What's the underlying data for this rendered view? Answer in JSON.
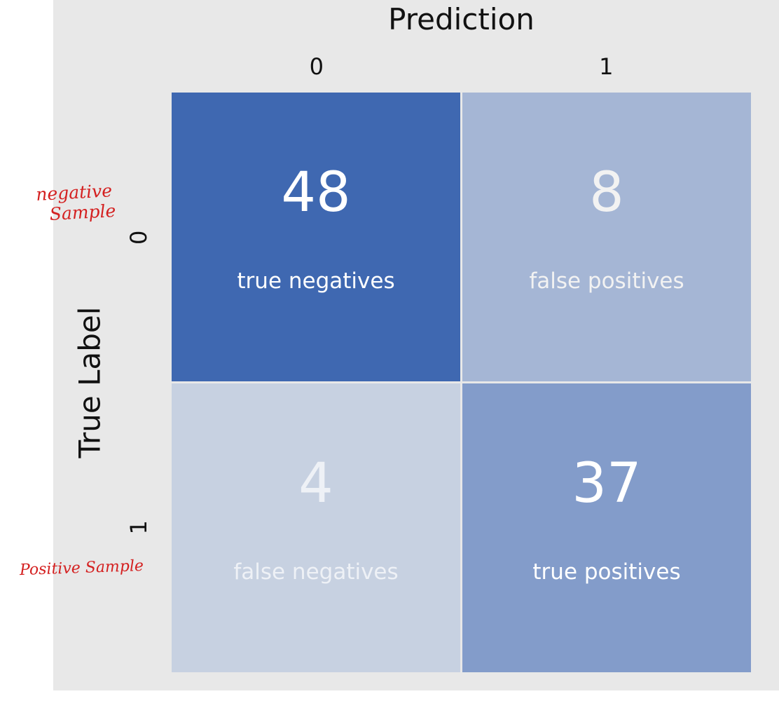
{
  "chart_data": {
    "type": "heatmap",
    "xlabel": "Prediction",
    "ylabel": "True Label",
    "x_categories": [
      "0",
      "1"
    ],
    "y_categories": [
      "0",
      "1"
    ],
    "cells": [
      {
        "row": 0,
        "col": 0,
        "value": 48,
        "label": "true negatives",
        "color": "#3f68b1",
        "text_color": "#ffffff"
      },
      {
        "row": 0,
        "col": 1,
        "value": 8,
        "label": "false positives",
        "color": "#a5b6d5",
        "text_color": "#f2f2f2"
      },
      {
        "row": 1,
        "col": 0,
        "value": 4,
        "label": "false negatives",
        "color": "#c7d1e1",
        "text_color": "#eef1f6"
      },
      {
        "row": 1,
        "col": 1,
        "value": 37,
        "label": "true positives",
        "color": "#839cca",
        "text_color": "#ffffff"
      }
    ]
  },
  "annotations": {
    "negative_line1": "negative",
    "negative_line2": "Sample",
    "positive": "Positive Sample",
    "color": "#d42020"
  }
}
